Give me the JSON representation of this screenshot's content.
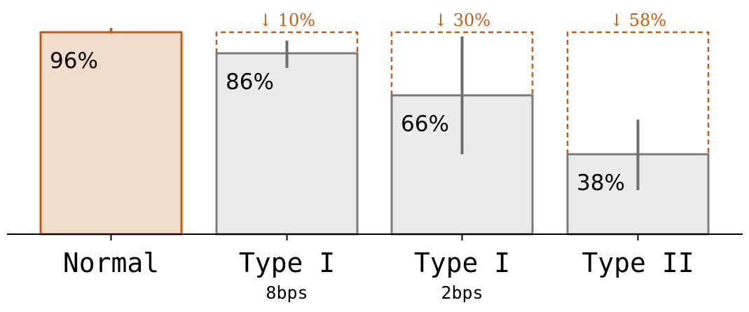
{
  "chart_data": {
    "type": "bar",
    "categories": [
      "Normal",
      "Type I",
      "Type I",
      "Type II"
    ],
    "subcategories": [
      "",
      "8bps",
      "2bps",
      ""
    ],
    "values": [
      96,
      86,
      66,
      38
    ],
    "value_labels": [
      "96%",
      "86%",
      "66%",
      "38%"
    ],
    "errors": [
      [
        95.4,
        98.0
      ],
      [
        79.0,
        92.0
      ],
      [
        38.0,
        94.0
      ],
      [
        21.0,
        54.5
      ]
    ],
    "drop_labels": [
      "",
      "↓ 10%",
      "↓ 30%",
      "↓ 58%"
    ],
    "ylim": [
      0,
      100
    ],
    "grid": false,
    "colors": {
      "highlight_fill": "#f0dccb",
      "highlight_edge": "#c55a11",
      "bar_fill": "#ebebeb",
      "bar_edge": "#7a7a7a",
      "error_bar": "#6e6e6e",
      "reference_line": "#c55a11",
      "drop_text": "#c55a11",
      "axis": "#000000"
    }
  }
}
